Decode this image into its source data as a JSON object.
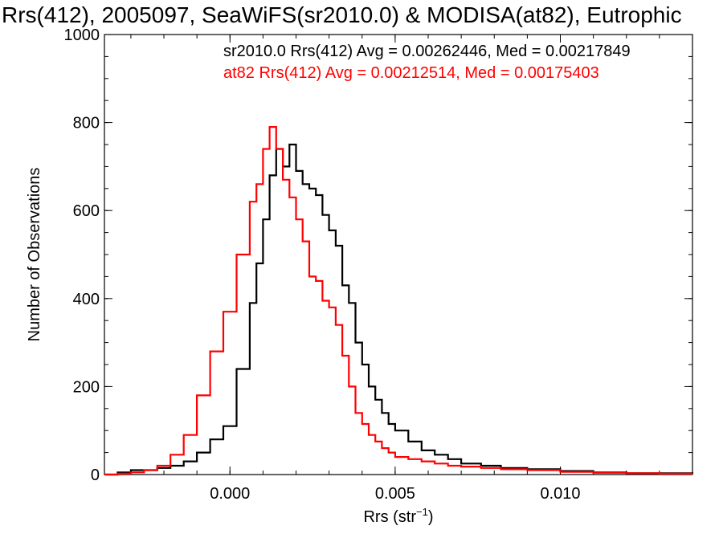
{
  "chart_data": {
    "type": "line",
    "title": "Rrs(412), 2005097, SeaWiFS(sr2010.0) & MODISA(at82), Eutrophic",
    "xlabel": "Rrs (str",
    "xlabel_sup": "−1",
    "xlabel_close": ")",
    "ylabel": "Number of Observations",
    "xlim": [
      -0.0038,
      0.014
    ],
    "ylim": [
      0,
      1000
    ],
    "xticks": [
      0.0,
      0.005,
      0.01
    ],
    "xtick_labels": [
      "0.000",
      "0.005",
      "0.010"
    ],
    "yticks": [
      0,
      200,
      400,
      600,
      800,
      1000
    ],
    "ytick_labels": [
      "0",
      "200",
      "400",
      "600",
      "800",
      "1000"
    ],
    "grid": false,
    "legend_position": "top-right",
    "series": [
      {
        "name": "sr2010.0 Rrs(412) Avg = 0.00262446, Med = 0.00217849",
        "color": "#000000",
        "x": [
          -0.0038,
          -0.0034,
          -0.003,
          -0.0026,
          -0.0022,
          -0.0018,
          -0.0014,
          -0.001,
          -0.0006,
          -0.0002,
          0.0002,
          0.0006,
          0.0008,
          0.001,
          0.0012,
          0.0014,
          0.0016,
          0.0018,
          0.002,
          0.0022,
          0.0024,
          0.0026,
          0.0028,
          0.003,
          0.0032,
          0.0034,
          0.0036,
          0.0038,
          0.004,
          0.0042,
          0.0044,
          0.0046,
          0.0048,
          0.005,
          0.0054,
          0.0058,
          0.0062,
          0.0066,
          0.007,
          0.0076,
          0.0082,
          0.009,
          0.01,
          0.011,
          0.012,
          0.013,
          0.014
        ],
        "y": [
          0,
          5,
          10,
          10,
          15,
          20,
          30,
          50,
          80,
          110,
          240,
          390,
          480,
          580,
          680,
          740,
          700,
          750,
          690,
          660,
          650,
          635,
          590,
          555,
          520,
          430,
          390,
          300,
          250,
          200,
          170,
          140,
          115,
          100,
          75,
          55,
          45,
          35,
          25,
          20,
          15,
          12,
          8,
          5,
          3,
          3,
          2
        ]
      },
      {
        "name": "at82 Rrs(412) Avg = 0.00212514, Med = 0.00175403",
        "color": "#ff0000",
        "x": [
          -0.0038,
          -0.0034,
          -0.003,
          -0.0026,
          -0.0022,
          -0.0018,
          -0.0014,
          -0.001,
          -0.0006,
          -0.0002,
          0.0002,
          0.0006,
          0.0008,
          0.001,
          0.0012,
          0.0014,
          0.0016,
          0.0018,
          0.002,
          0.0022,
          0.0024,
          0.0026,
          0.0028,
          0.003,
          0.0032,
          0.0034,
          0.0036,
          0.0038,
          0.004,
          0.0042,
          0.0044,
          0.0046,
          0.0048,
          0.005,
          0.0054,
          0.0058,
          0.0062,
          0.0066,
          0.007,
          0.0076,
          0.0082,
          0.009,
          0.01,
          0.011,
          0.012,
          0.013,
          0.014
        ],
        "y": [
          0,
          2,
          5,
          10,
          20,
          45,
          90,
          180,
          280,
          370,
          500,
          620,
          660,
          740,
          790,
          740,
          670,
          630,
          580,
          530,
          450,
          440,
          395,
          380,
          340,
          270,
          200,
          140,
          115,
          90,
          75,
          60,
          50,
          40,
          35,
          30,
          25,
          20,
          18,
          15,
          12,
          10,
          6,
          4,
          3,
          2,
          2
        ]
      }
    ]
  }
}
